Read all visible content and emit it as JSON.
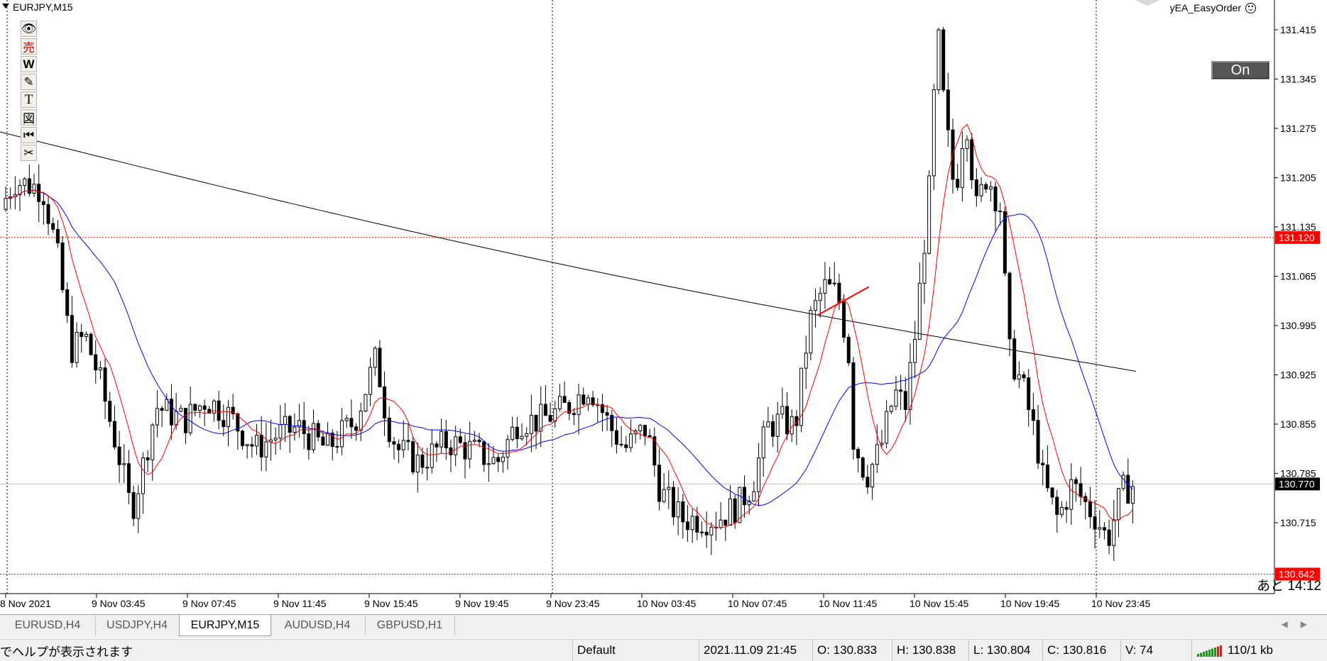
{
  "chart": {
    "title": "EURJPY,M15",
    "ea_name": "yEA_EasyOrder",
    "ea_button": "On",
    "remaining": "あと 14:12",
    "price_labels": [
      "131.415",
      "131.345",
      "131.275",
      "131.205",
      "131.135",
      "131.065",
      "130.995",
      "130.925",
      "130.855",
      "130.785",
      "130.715"
    ],
    "current_price": "130.770",
    "line_upper": "131.120",
    "line_lower": "130.642",
    "time_labels": [
      "8 Nov 2021",
      "9 Nov 03:45",
      "9 Nov 07:45",
      "9 Nov 11:45",
      "9 Nov 15:45",
      "9 Nov 19:45",
      "9 Nov 23:45",
      "10 Nov 03:45",
      "10 Nov 07:45",
      "10 Nov 11:45",
      "10 Nov 15:45",
      "10 Nov 19:45",
      "10 Nov 23:45"
    ],
    "colors": {
      "ma_fast": "#ff0000",
      "ma_mid": "#0000ff",
      "ma_slow": "#000000",
      "level_line": "#ff0000",
      "label_bg": "#ff0000",
      "current_bg": "#000000"
    }
  },
  "chart_data": {
    "type": "candlestick",
    "symbol": "EURJPY",
    "timeframe": "M15",
    "ylim": [
      130.64,
      131.43
    ],
    "current_price": 130.77,
    "hlines": [
      131.12,
      130.642
    ],
    "series": [
      {
        "name": "ma_fast",
        "color": "#ff0000"
      },
      {
        "name": "ma_mid",
        "color": "#0000ff"
      },
      {
        "name": "ma_slow",
        "color": "#000000"
      }
    ]
  },
  "toolbar": {
    "icons": [
      "eye-icon",
      "sell-icon",
      "w-icon",
      "pencil-icon",
      "text-icon",
      "picture-icon",
      "rewind-icon",
      "scissors-icon"
    ],
    "sell_label": "売",
    "w_label": "W",
    "t_label": "T",
    "pic_label": "図",
    "rewind_label": "⏮",
    "scissors_label": "✂",
    "eye_label": "👁",
    "pencil_label": "✎"
  },
  "tabs": [
    {
      "label": "EURUSD,H4"
    },
    {
      "label": "USDJPY,H4"
    },
    {
      "label": "EURJPY,M15",
      "active": true
    },
    {
      "label": "AUDUSD,H4"
    },
    {
      "label": "GBPUSD,H1"
    }
  ],
  "status": {
    "help": "でヘルプが表示されます",
    "profile": "Default",
    "datetime": "2021.11.09 21:45",
    "open": "O: 130.833",
    "high": "H: 130.838",
    "low": "L: 130.804",
    "close": "C: 130.816",
    "volume": "V: 74",
    "traffic": "110/1 kb"
  }
}
